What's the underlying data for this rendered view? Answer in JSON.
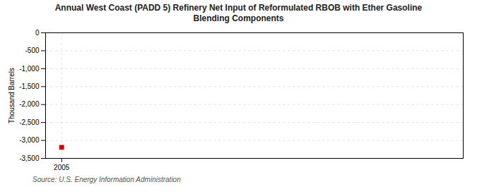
{
  "chart_data": {
    "type": "scatter",
    "title": "Annual West Coast (PADD 5) Refinery Net Input of Reformulated RBOB with Ether Gasoline\nBlending Components",
    "ylabel": "Thousand Barrels",
    "source": "Source: U.S. Energy Information Administration",
    "x": [
      2005
    ],
    "values": [
      -3192
    ],
    "color": "#cc0000",
    "marker": "square",
    "xlim": [
      2004.4,
      2020
    ],
    "xticks": [
      2005
    ],
    "ylim": [
      -3500,
      0
    ],
    "yticks": [
      0,
      -500,
      {
        "value": -1000,
        "label": "-1,000"
      },
      {
        "value": -1500,
        "label": "-1,500"
      },
      {
        "value": -2000,
        "label": "-2,000"
      },
      {
        "value": -2500,
        "label": "-2,500"
      },
      {
        "value": -3000,
        "label": "-3,000"
      },
      {
        "value": -3500,
        "label": "-3,500"
      }
    ],
    "grid": true
  }
}
